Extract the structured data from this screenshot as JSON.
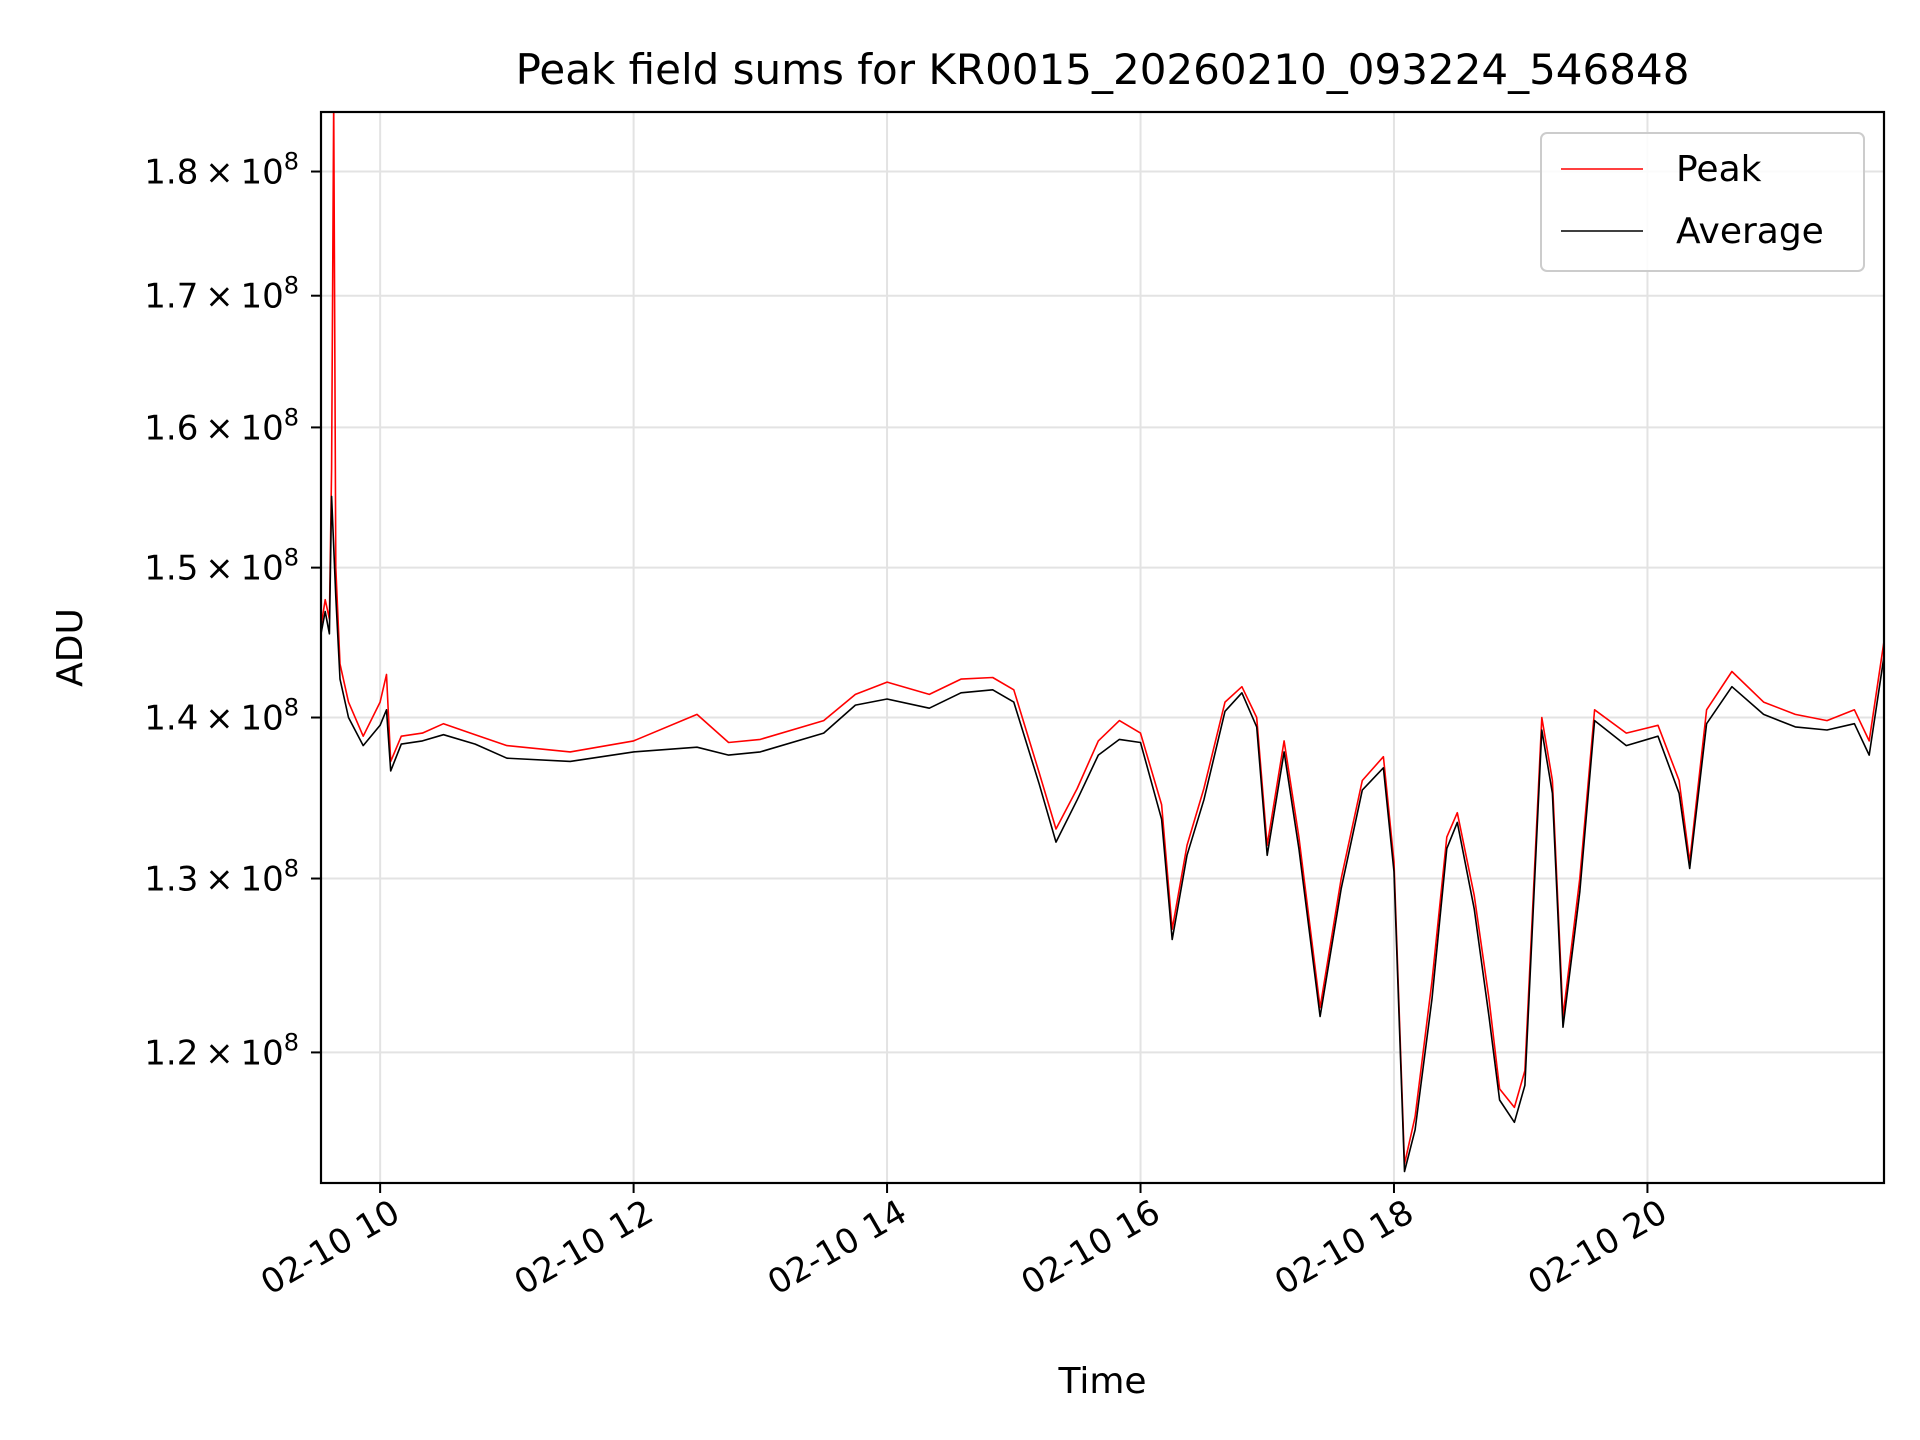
{
  "chart_data": {
    "type": "line",
    "title": "Peak field sums for KR0015_20260210_093224_546848",
    "xlabel": "Time",
    "ylabel": "ADU",
    "yscale": "log",
    "grid": true,
    "legend_position": "top-right",
    "xlim": [
      "2026-02-10 09:32",
      "2026-02-10 21:52"
    ],
    "ylim": [
      113000000,
      185000000
    ],
    "x_ticks": [
      "02-10 10",
      "02-10 12",
      "02-10 14",
      "02-10 16",
      "02-10 18",
      "02-10 20"
    ],
    "y_ticks": [
      {
        "value": 120000000,
        "mantissa": "1.2",
        "exp": "8"
      },
      {
        "value": 130000000,
        "mantissa": "1.3",
        "exp": "8"
      },
      {
        "value": 140000000,
        "mantissa": "1.4",
        "exp": "8"
      },
      {
        "value": 150000000,
        "mantissa": "1.5",
        "exp": "8"
      },
      {
        "value": 160000000,
        "mantissa": "1.6",
        "exp": "8"
      },
      {
        "value": 170000000,
        "mantissa": "1.7",
        "exp": "8"
      },
      {
        "value": 180000000,
        "mantissa": "1.8",
        "exp": "8"
      }
    ],
    "series": [
      {
        "name": "Peak",
        "color": "#ff0000",
        "points": [
          [
            "2026-02-10 09:32",
            146.0
          ],
          [
            "2026-02-10 09:34",
            147.8
          ],
          [
            "2026-02-10 09:36",
            146.5
          ],
          [
            "2026-02-10 09:37",
            157.0
          ],
          [
            "2026-02-10 09:38",
            186.0
          ],
          [
            "2026-02-10 09:39",
            150.0
          ],
          [
            "2026-02-10 09:41",
            143.5
          ],
          [
            "2026-02-10 09:45",
            141.0
          ],
          [
            "2026-02-10 09:52",
            138.8
          ],
          [
            "2026-02-10 10:00",
            141.0
          ],
          [
            "2026-02-10 10:03",
            142.8
          ],
          [
            "2026-02-10 10:05",
            137.2
          ],
          [
            "2026-02-10 10:10",
            138.8
          ],
          [
            "2026-02-10 10:20",
            139.0
          ],
          [
            "2026-02-10 10:30",
            139.6
          ],
          [
            "2026-02-10 10:45",
            138.9
          ],
          [
            "2026-02-10 11:00",
            138.2
          ],
          [
            "2026-02-10 11:30",
            137.8
          ],
          [
            "2026-02-10 12:00",
            138.5
          ],
          [
            "2026-02-10 12:30",
            140.2
          ],
          [
            "2026-02-10 12:45",
            138.4
          ],
          [
            "2026-02-10 13:00",
            138.6
          ],
          [
            "2026-02-10 13:30",
            139.8
          ],
          [
            "2026-02-10 13:45",
            141.5
          ],
          [
            "2026-02-10 14:00",
            142.3
          ],
          [
            "2026-02-10 14:20",
            141.5
          ],
          [
            "2026-02-10 14:35",
            142.5
          ],
          [
            "2026-02-10 14:50",
            142.6
          ],
          [
            "2026-02-10 15:00",
            141.8
          ],
          [
            "2026-02-10 15:12",
            136.5
          ],
          [
            "2026-02-10 15:20",
            133.0
          ],
          [
            "2026-02-10 15:30",
            135.5
          ],
          [
            "2026-02-10 15:40",
            138.5
          ],
          [
            "2026-02-10 15:50",
            139.8
          ],
          [
            "2026-02-10 16:00",
            139.0
          ],
          [
            "2026-02-10 16:10",
            134.5
          ],
          [
            "2026-02-10 16:15",
            127.0
          ],
          [
            "2026-02-10 16:22",
            132.0
          ],
          [
            "2026-02-10 16:30",
            135.5
          ],
          [
            "2026-02-10 16:40",
            141.0
          ],
          [
            "2026-02-10 16:48",
            142.0
          ],
          [
            "2026-02-10 16:55",
            140.0
          ],
          [
            "2026-02-10 17:00",
            132.0
          ],
          [
            "2026-02-10 17:08",
            138.5
          ],
          [
            "2026-02-10 17:15",
            132.5
          ],
          [
            "2026-02-10 17:25",
            122.5
          ],
          [
            "2026-02-10 17:35",
            130.0
          ],
          [
            "2026-02-10 17:45",
            136.0
          ],
          [
            "2026-02-10 17:55",
            137.5
          ],
          [
            "2026-02-10 18:00",
            131.0
          ],
          [
            "2026-02-10 18:05",
            114.0
          ],
          [
            "2026-02-10 18:10",
            116.5
          ],
          [
            "2026-02-10 18:18",
            124.0
          ],
          [
            "2026-02-10 18:25",
            132.5
          ],
          [
            "2026-02-10 18:30",
            134.0
          ],
          [
            "2026-02-10 18:38",
            129.0
          ],
          [
            "2026-02-10 18:45",
            123.0
          ],
          [
            "2026-02-10 18:50",
            118.0
          ],
          [
            "2026-02-10 18:57",
            117.0
          ],
          [
            "2026-02-10 19:02",
            119.0
          ],
          [
            "2026-02-10 19:10",
            140.0
          ],
          [
            "2026-02-10 19:15",
            136.0
          ],
          [
            "2026-02-10 19:20",
            122.0
          ],
          [
            "2026-02-10 19:28",
            130.0
          ],
          [
            "2026-02-10 19:35",
            140.5
          ],
          [
            "2026-02-10 19:50",
            139.0
          ],
          [
            "2026-02-10 20:05",
            139.5
          ],
          [
            "2026-02-10 20:15",
            136.0
          ],
          [
            "2026-02-10 20:20",
            131.0
          ],
          [
            "2026-02-10 20:28",
            140.5
          ],
          [
            "2026-02-10 20:40",
            143.0
          ],
          [
            "2026-02-10 20:55",
            141.0
          ],
          [
            "2026-02-10 21:10",
            140.2
          ],
          [
            "2026-02-10 21:25",
            139.8
          ],
          [
            "2026-02-10 21:38",
            140.5
          ],
          [
            "2026-02-10 21:45",
            138.5
          ],
          [
            "2026-02-10 21:52",
            145.0
          ]
        ]
      },
      {
        "name": "Average",
        "color": "#000000",
        "points": [
          [
            "2026-02-10 09:32",
            145.5
          ],
          [
            "2026-02-10 09:34",
            147.0
          ],
          [
            "2026-02-10 09:36",
            145.5
          ],
          [
            "2026-02-10 09:37",
            155.0
          ],
          [
            "2026-02-10 09:39",
            148.0
          ],
          [
            "2026-02-10 09:41",
            142.5
          ],
          [
            "2026-02-10 09:45",
            140.0
          ],
          [
            "2026-02-10 09:52",
            138.2
          ],
          [
            "2026-02-10 10:00",
            139.5
          ],
          [
            "2026-02-10 10:03",
            140.5
          ],
          [
            "2026-02-10 10:05",
            136.6
          ],
          [
            "2026-02-10 10:10",
            138.3
          ],
          [
            "2026-02-10 10:20",
            138.5
          ],
          [
            "2026-02-10 10:30",
            138.9
          ],
          [
            "2026-02-10 10:45",
            138.3
          ],
          [
            "2026-02-10 11:00",
            137.4
          ],
          [
            "2026-02-10 11:30",
            137.2
          ],
          [
            "2026-02-10 12:00",
            137.8
          ],
          [
            "2026-02-10 12:30",
            138.1
          ],
          [
            "2026-02-10 12:45",
            137.6
          ],
          [
            "2026-02-10 13:00",
            137.8
          ],
          [
            "2026-02-10 13:30",
            139.0
          ],
          [
            "2026-02-10 13:45",
            140.8
          ],
          [
            "2026-02-10 14:00",
            141.2
          ],
          [
            "2026-02-10 14:20",
            140.6
          ],
          [
            "2026-02-10 14:35",
            141.6
          ],
          [
            "2026-02-10 14:50",
            141.8
          ],
          [
            "2026-02-10 15:00",
            141.0
          ],
          [
            "2026-02-10 15:12",
            135.8
          ],
          [
            "2026-02-10 15:20",
            132.2
          ],
          [
            "2026-02-10 15:30",
            134.8
          ],
          [
            "2026-02-10 15:40",
            137.6
          ],
          [
            "2026-02-10 15:50",
            138.6
          ],
          [
            "2026-02-10 16:00",
            138.4
          ],
          [
            "2026-02-10 16:10",
            133.6
          ],
          [
            "2026-02-10 16:15",
            126.4
          ],
          [
            "2026-02-10 16:22",
            131.4
          ],
          [
            "2026-02-10 16:30",
            134.8
          ],
          [
            "2026-02-10 16:40",
            140.4
          ],
          [
            "2026-02-10 16:48",
            141.6
          ],
          [
            "2026-02-10 16:55",
            139.4
          ],
          [
            "2026-02-10 17:00",
            131.4
          ],
          [
            "2026-02-10 17:08",
            137.8
          ],
          [
            "2026-02-10 17:15",
            131.8
          ],
          [
            "2026-02-10 17:25",
            122.0
          ],
          [
            "2026-02-10 17:35",
            129.4
          ],
          [
            "2026-02-10 17:45",
            135.4
          ],
          [
            "2026-02-10 17:55",
            136.8
          ],
          [
            "2026-02-10 18:00",
            130.4
          ],
          [
            "2026-02-10 18:05",
            113.6
          ],
          [
            "2026-02-10 18:10",
            115.8
          ],
          [
            "2026-02-10 18:18",
            123.0
          ],
          [
            "2026-02-10 18:25",
            131.8
          ],
          [
            "2026-02-10 18:30",
            133.4
          ],
          [
            "2026-02-10 18:38",
            128.2
          ],
          [
            "2026-02-10 18:45",
            122.0
          ],
          [
            "2026-02-10 18:50",
            117.4
          ],
          [
            "2026-02-10 18:57",
            116.2
          ],
          [
            "2026-02-10 19:02",
            118.2
          ],
          [
            "2026-02-10 19:10",
            139.2
          ],
          [
            "2026-02-10 19:15",
            135.2
          ],
          [
            "2026-02-10 19:20",
            121.4
          ],
          [
            "2026-02-10 19:28",
            129.2
          ],
          [
            "2026-02-10 19:35",
            139.8
          ],
          [
            "2026-02-10 19:50",
            138.2
          ],
          [
            "2026-02-10 20:05",
            138.8
          ],
          [
            "2026-02-10 20:15",
            135.2
          ],
          [
            "2026-02-10 20:20",
            130.6
          ],
          [
            "2026-02-10 20:28",
            139.6
          ],
          [
            "2026-02-10 20:40",
            142.0
          ],
          [
            "2026-02-10 20:55",
            140.2
          ],
          [
            "2026-02-10 21:10",
            139.4
          ],
          [
            "2026-02-10 21:25",
            139.2
          ],
          [
            "2026-02-10 21:38",
            139.6
          ],
          [
            "2026-02-10 21:45",
            137.6
          ],
          [
            "2026-02-10 21:52",
            144.0
          ]
        ]
      }
    ],
    "y_value_unit_scale": 1000000
  }
}
